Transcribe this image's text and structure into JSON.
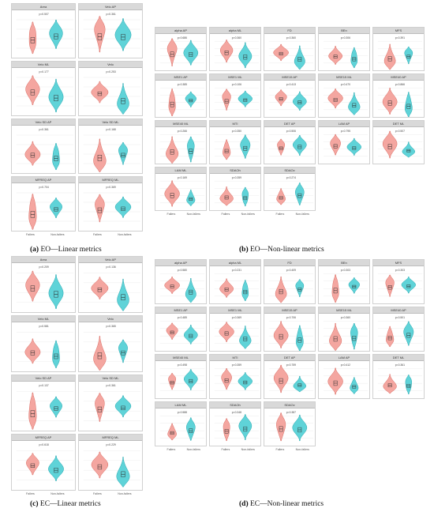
{
  "colors": {
    "fallers": "#f4a6a0",
    "fallers_stroke": "#d9665d",
    "nonfallers": "#5fd3d8",
    "nonfallers_stroke": "#21a5ad"
  },
  "x_labels": [
    "Fallers",
    "Non-fallers"
  ],
  "captions": {
    "a": {
      "letter": "(a)",
      "text": " EO—Linear metrics"
    },
    "b": {
      "letter": "(b)",
      "text": " EO—Non-linear metrics"
    },
    "c": {
      "letter": "(c)",
      "text": " EC—Linear metrics"
    },
    "d": {
      "letter": "(d)",
      "text": " EC—Non-linear metrics"
    }
  },
  "panels": {
    "a": [
      {
        "title": "Area",
        "p": "p=0.507"
      },
      {
        "title": "Velo AP",
        "p": "p=0.361"
      },
      {
        "title": "Velo ML",
        "p": "p=0.177"
      },
      {
        "title": "Velo",
        "p": "p=0.253"
      },
      {
        "title": "Velo SD AP",
        "p": "p=0.361"
      },
      {
        "title": "Velo SD ML",
        "p": "p=0.168"
      },
      {
        "title": "MFREQ AP",
        "p": "p=0.704"
      },
      {
        "title": "MFREQ ML",
        "p": "p=0.369"
      }
    ],
    "b": [
      {
        "title": "alpha AP",
        "p": "p=0.686"
      },
      {
        "title": "alpha ML",
        "p": "p=0.360"
      },
      {
        "title": "FD",
        "p": "p=0.360"
      },
      {
        "title": "BEn",
        "p": "p=0.306"
      },
      {
        "title": "MFS",
        "p": "p=0.391"
      },
      {
        "title": "MSE1 AP",
        "p": "p=0.385"
      },
      {
        "title": "MSE1 ML",
        "p": "p=0.106"
      },
      {
        "title": "MSE15 AP",
        "p": "p=0.413"
      },
      {
        "title": "MSE15 ML",
        "p": "p=0.470"
      },
      {
        "title": "MSE40 AP",
        "p": "p=0.866"
      },
      {
        "title": "MSE40 ML",
        "p": "p=0.266"
      },
      {
        "title": "MTI",
        "p": "p=0.350"
      },
      {
        "title": "DET AP",
        "p": "p=0.506"
      },
      {
        "title": "LAM AP",
        "p": "p=0.795"
      },
      {
        "title": "DET ML",
        "p": "p=0.507"
      },
      {
        "title": "LAM ML",
        "p": "p=0.169"
      },
      {
        "title": "SDAOh",
        "p": "p=0.359"
      },
      {
        "title": "SDAOv",
        "p": "p=0.274"
      }
    ],
    "c": [
      {
        "title": "Area",
        "p": "p=0.209"
      },
      {
        "title": "Velo AP",
        "p": "p=0.136"
      },
      {
        "title": "Velo ML",
        "p": "p=0.581"
      },
      {
        "title": "Velo",
        "p": "p=0.365"
      },
      {
        "title": "Velo SD AP",
        "p": "p=0.137"
      },
      {
        "title": "Velo SD ML",
        "p": "p=0.361"
      },
      {
        "title": "MFREQ AP",
        "p": "p=0.618"
      },
      {
        "title": "MFREQ ML",
        "p": "p=0.229"
      }
    ],
    "d": [
      {
        "title": "alpha AP",
        "p": "p=0.580"
      },
      {
        "title": "alpha ML",
        "p": "p=0.231"
      },
      {
        "title": "FD",
        "p": "p=0.409"
      },
      {
        "title": "BEn",
        "p": "p=0.303"
      },
      {
        "title": "MFS",
        "p": "p=0.303"
      },
      {
        "title": "MSE1 AP",
        "p": "p=0.485"
      },
      {
        "title": "MSE1 ML",
        "p": "p=0.369"
      },
      {
        "title": "MSE15 AP",
        "p": "p=0.706"
      },
      {
        "title": "MSE15 ML",
        "p": "p=0.360"
      },
      {
        "title": "MSE40 AP",
        "p": "p=0.501"
      },
      {
        "title": "MSE40 ML",
        "p": "p=0.498"
      },
      {
        "title": "MTI",
        "p": "p=0.359"
      },
      {
        "title": "DET AP",
        "p": "p=0.759"
      },
      {
        "title": "LAM AP",
        "p": "p=0.412"
      },
      {
        "title": "DET ML",
        "p": "p=0.361"
      },
      {
        "title": "LAM ML",
        "p": "p=0.588"
      },
      {
        "title": "SDAOh",
        "p": "p=0.348"
      },
      {
        "title": "SDAOv",
        "p": "p=0.387"
      }
    ]
  }
}
